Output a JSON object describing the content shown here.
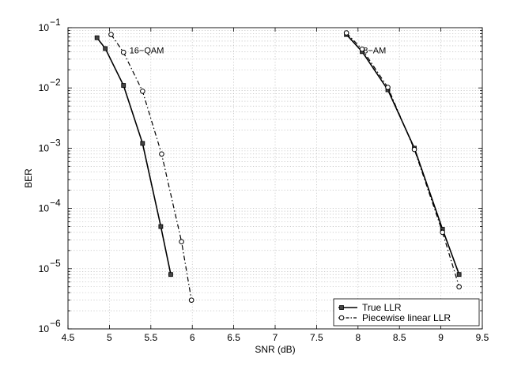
{
  "chart_data": {
    "type": "line",
    "xlabel": "SNR (dB)",
    "ylabel": "BER",
    "xlim": [
      4.5,
      9.5
    ],
    "ylim": [
      1e-06,
      0.1
    ],
    "yscale": "log",
    "grid": true,
    "x_ticks": [
      {
        "value": 4.5,
        "label": "4.5"
      },
      {
        "value": 5,
        "label": "5"
      },
      {
        "value": 5.5,
        "label": "5.5"
      },
      {
        "value": 6,
        "label": "6"
      },
      {
        "value": 6.5,
        "label": "6.5"
      },
      {
        "value": 7,
        "label": "7"
      },
      {
        "value": 7.5,
        "label": "7.5"
      },
      {
        "value": 8,
        "label": "8"
      },
      {
        "value": 8.5,
        "label": "8.5"
      },
      {
        "value": 9,
        "label": "9"
      },
      {
        "value": 9.5,
        "label": "9.5"
      }
    ],
    "y_ticks": [
      {
        "exp": -6,
        "base": "10",
        "sup": "−6"
      },
      {
        "exp": -5,
        "base": "10",
        "sup": "−5"
      },
      {
        "exp": -4,
        "base": "10",
        "sup": "−4"
      },
      {
        "exp": -3,
        "base": "10",
        "sup": "−3"
      },
      {
        "exp": -2,
        "base": "10",
        "sup": "−2"
      },
      {
        "exp": -1,
        "base": "10",
        "sup": "−1"
      }
    ],
    "series": [
      {
        "name": "True LLR",
        "group": "16-QAM",
        "style": "solid",
        "marker": "square",
        "x": [
          4.85,
          4.95,
          5.17,
          5.4,
          5.62,
          5.74
        ],
        "y": [
          0.068,
          0.045,
          0.011,
          0.0012,
          5e-05,
          8e-06
        ]
      },
      {
        "name": "Piecewise linear LLR",
        "group": "16-QAM",
        "style": "dashdot",
        "marker": "circle",
        "x": [
          5.02,
          5.17,
          5.4,
          5.63,
          5.87,
          5.99
        ],
        "y": [
          0.077,
          0.039,
          0.0088,
          0.0008,
          2.8e-05,
          3e-06
        ]
      },
      {
        "name": "True LLR",
        "group": "8-AM",
        "style": "solid",
        "marker": "square",
        "x": [
          7.86,
          8.05,
          8.36,
          8.68,
          9.02,
          9.22
        ],
        "y": [
          0.077,
          0.04,
          0.0093,
          0.001,
          4.5e-05,
          8e-06
        ]
      },
      {
        "name": "Piecewise linear LLR",
        "group": "8-AM",
        "style": "dashdot",
        "marker": "circle",
        "x": [
          7.86,
          8.05,
          8.36,
          8.68,
          9.02,
          9.22
        ],
        "y": [
          0.082,
          0.044,
          0.0102,
          0.00095,
          4e-05,
          5e-06
        ]
      }
    ],
    "annotations": [
      {
        "text": "16−QAM",
        "x": 5.45,
        "y": 0.042
      },
      {
        "text": "8−AM",
        "x": 8.2,
        "y": 0.042
      }
    ],
    "legend": {
      "placement": "bottom-right",
      "entries": [
        {
          "label": "True LLR",
          "style": "solid",
          "marker": "square"
        },
        {
          "label": "Piecewise linear LLR",
          "style": "dashdot",
          "marker": "circle"
        }
      ]
    }
  }
}
